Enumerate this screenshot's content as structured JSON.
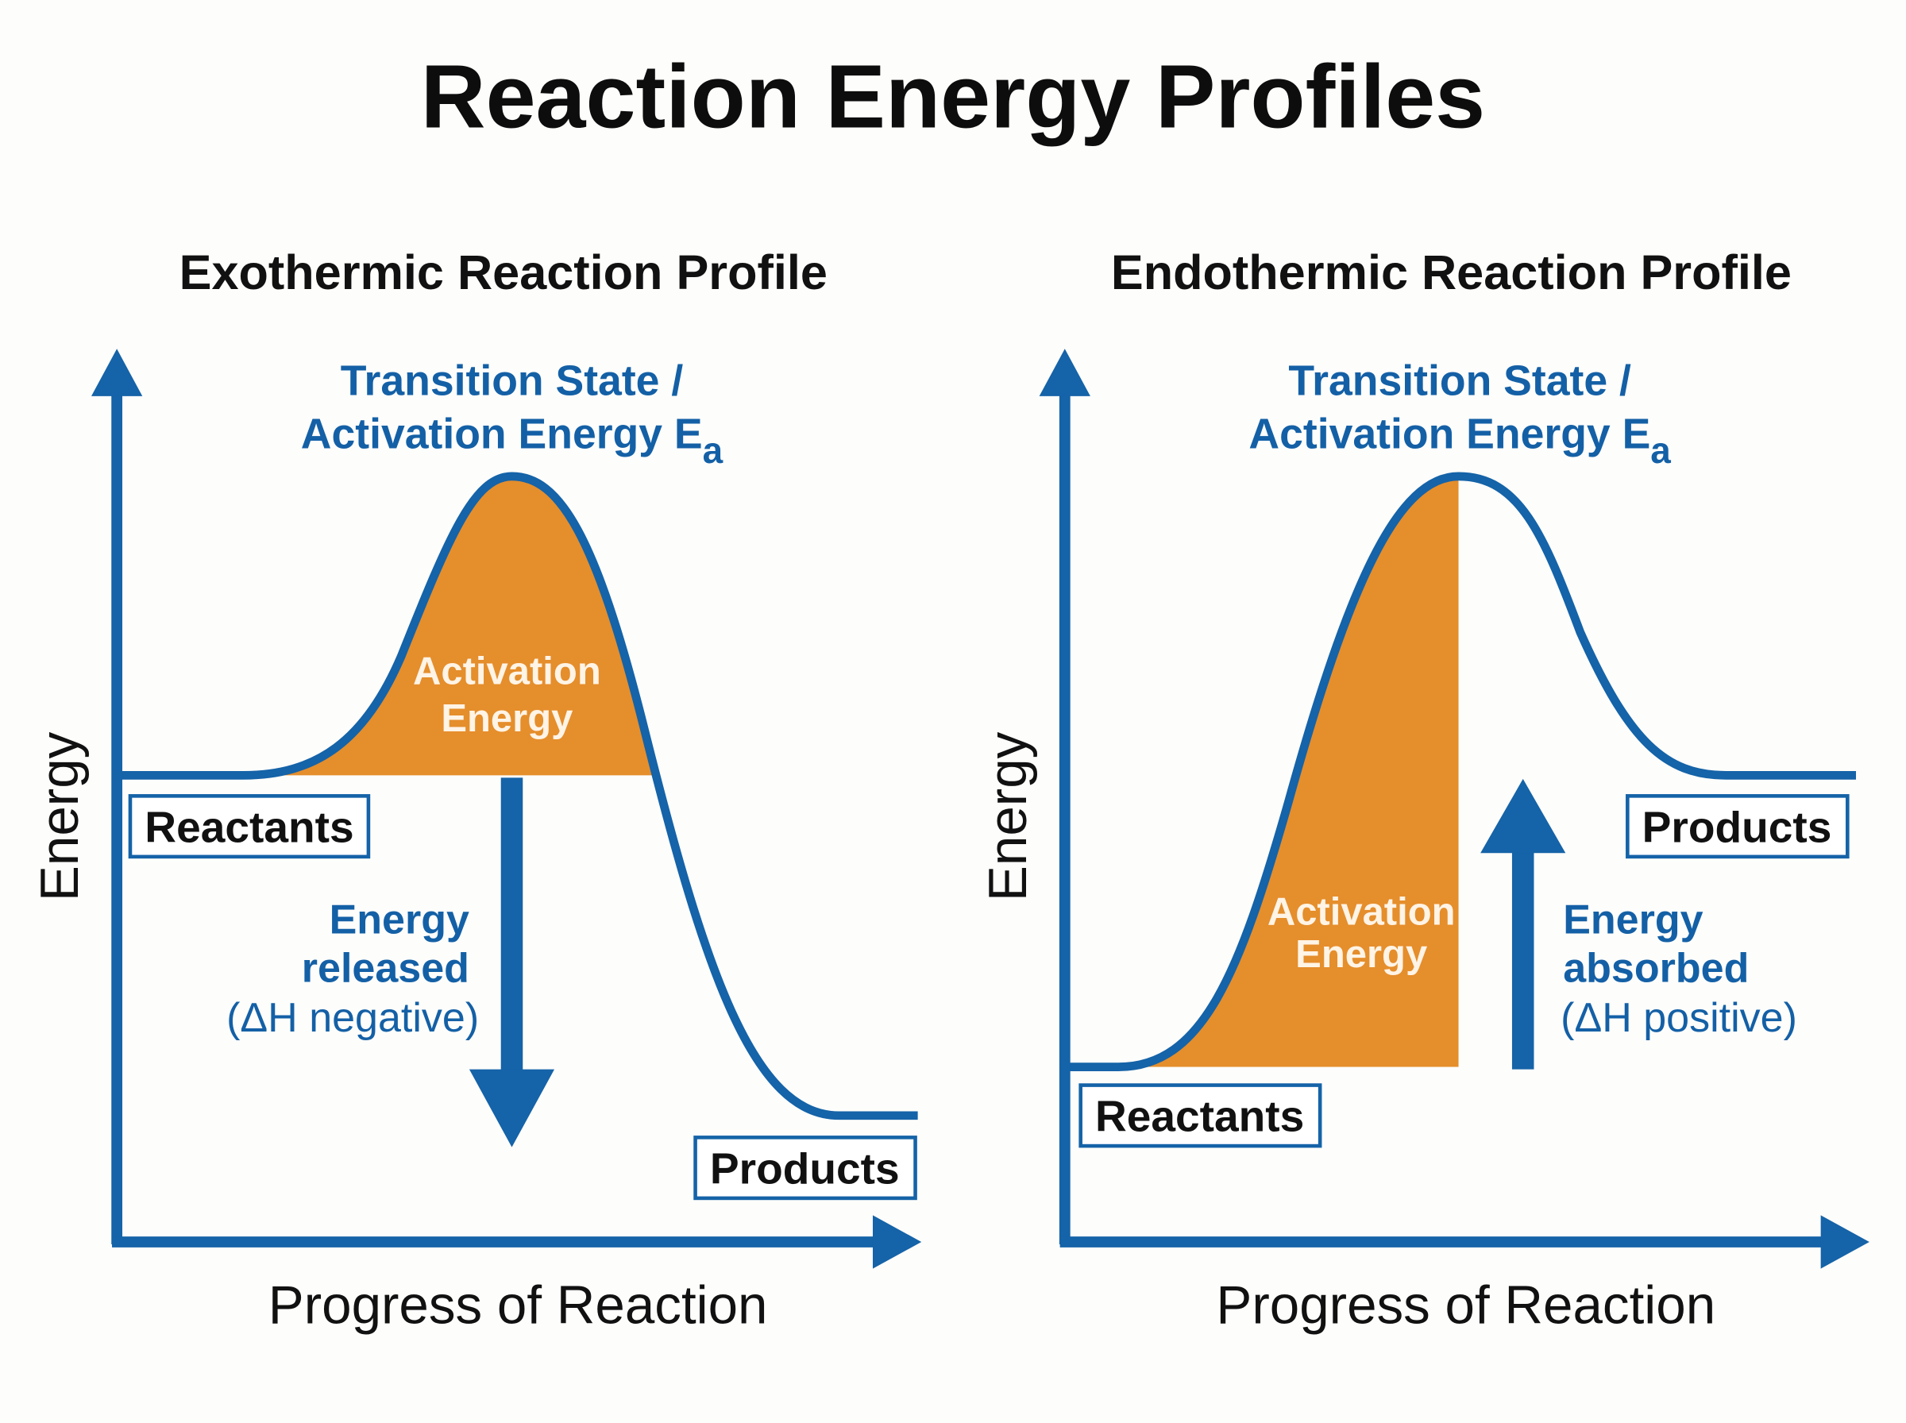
{
  "title": "Reaction Energy Profiles",
  "colors": {
    "axis_blue": "#1563a8",
    "fill_orange": "#e58e2c",
    "text_blue": "#1460a6"
  },
  "exothermic": {
    "subtitle": "Exothermic Reaction Profile",
    "ts_line1": "Transition State /",
    "ts_line2": "Activation Energy E",
    "ts_sub": "a",
    "activation_line1": "Activation",
    "activation_line2": "Energy",
    "change_line1": "Energy",
    "change_line2": "released",
    "change_line3": "(ΔH negative)",
    "reactants": "Reactants",
    "products": "Products",
    "y_label": "Energy",
    "x_label": "Progress of Reaction"
  },
  "endothermic": {
    "subtitle": "Endothermic Reaction Profile",
    "ts_line1": "Transition State /",
    "ts_line2": "Activation Energy E",
    "ts_sub": "a",
    "activation_line1": "Activation",
    "activation_line2": "Energy",
    "change_line1": "Energy",
    "change_line2": "absorbed",
    "change_line3": "(ΔH positive)",
    "reactants": "Reactants",
    "products": "Products",
    "y_label": "Energy",
    "x_label": "Progress of Reaction"
  }
}
